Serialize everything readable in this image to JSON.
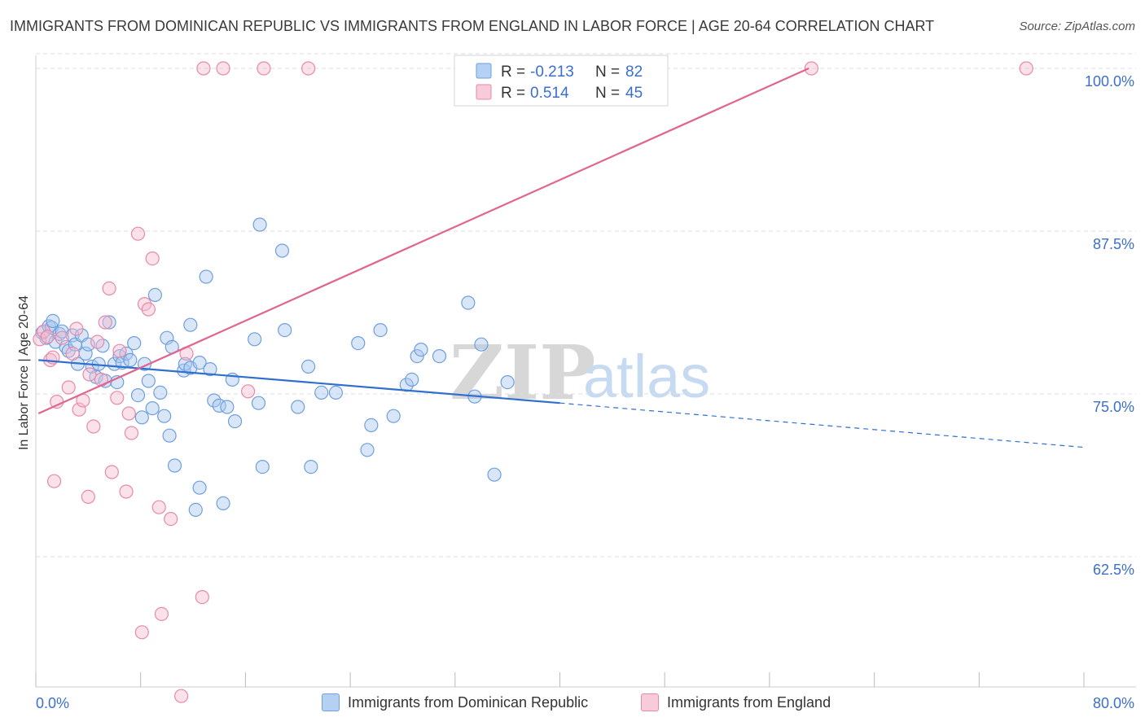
{
  "title": "IMMIGRANTS FROM DOMINICAN REPUBLIC VS IMMIGRANTS FROM ENGLAND IN LABOR FORCE | AGE 20-64 CORRELATION CHART",
  "source": "Source: ZipAtlas.com",
  "watermark": {
    "zip": "ZIP",
    "atlas": "atlas"
  },
  "colors": {
    "blue_fill": "#a8c8ef",
    "blue_stroke": "#6f9fdc",
    "blue_line": "#2f6fcf",
    "pink_fill": "#f5bcd0",
    "pink_stroke": "#e68aaa",
    "pink_line": "#e0658f",
    "axis_text": "#3b6fcc",
    "grid": "#dddddd"
  },
  "legend_top": [
    {
      "r_label": "R =",
      "r_value": "-0.213",
      "n_label": "N =",
      "n_value": "82",
      "series": "blue"
    },
    {
      "r_label": "R =",
      "r_value": "0.514",
      "n_label": "N =",
      "n_value": "45",
      "series": "pink"
    }
  ],
  "legend_bottom": [
    {
      "label": "Immigrants from Dominican Republic",
      "series": "blue"
    },
    {
      "label": "Immigrants from England",
      "series": "pink"
    }
  ],
  "chart_data": {
    "type": "scatter",
    "xlabel": "",
    "ylabel": "In Labor Force | Age 20-64",
    "xlim": [
      0,
      80
    ],
    "ylim": [
      52.5,
      101.5
    ],
    "x_tick_labels": [
      "0.0%",
      "80.0%"
    ],
    "y_ticks": [
      62.5,
      75.0,
      87.5,
      100.0
    ],
    "y_tick_labels": [
      "62.5%",
      "75.0%",
      "87.5%",
      "100.0%"
    ],
    "grid": "horizontal dashed",
    "legend": "top-center",
    "series": [
      {
        "name": "Immigrants from Dominican Republic",
        "color": "blue",
        "trend": {
          "x0": 0.2,
          "y0": 77.6,
          "x1": 40,
          "y1": 74.3,
          "dashed_to_x": 80,
          "dashed_to_y": 70.9
        },
        "points": [
          [
            0.5,
            79.7
          ],
          [
            0.8,
            79.3
          ],
          [
            1.0,
            80.2
          ],
          [
            1.2,
            80.1
          ],
          [
            1.3,
            80.6
          ],
          [
            1.5,
            79.0
          ],
          [
            1.8,
            79.6
          ],
          [
            2.0,
            79.8
          ],
          [
            2.3,
            78.6
          ],
          [
            2.5,
            78.3
          ],
          [
            2.8,
            79.5
          ],
          [
            3.0,
            78.8
          ],
          [
            3.2,
            77.3
          ],
          [
            3.5,
            79.5
          ],
          [
            3.8,
            78.1
          ],
          [
            4.0,
            78.8
          ],
          [
            4.3,
            77.1
          ],
          [
            4.6,
            76.3
          ],
          [
            4.8,
            77.3
          ],
          [
            5.1,
            78.7
          ],
          [
            5.3,
            76.0
          ],
          [
            5.6,
            80.5
          ],
          [
            6.0,
            77.3
          ],
          [
            6.2,
            75.9
          ],
          [
            6.4,
            77.9
          ],
          [
            6.6,
            77.4
          ],
          [
            6.9,
            78.1
          ],
          [
            7.2,
            77.6
          ],
          [
            7.5,
            78.9
          ],
          [
            7.8,
            74.9
          ],
          [
            8.1,
            73.2
          ],
          [
            8.3,
            77.3
          ],
          [
            8.6,
            76.0
          ],
          [
            8.9,
            73.9
          ],
          [
            9.1,
            82.6
          ],
          [
            9.5,
            75.1
          ],
          [
            9.8,
            73.3
          ],
          [
            10.0,
            79.3
          ],
          [
            10.2,
            71.8
          ],
          [
            10.4,
            78.6
          ],
          [
            10.6,
            69.5
          ],
          [
            11.3,
            76.8
          ],
          [
            11.4,
            77.3
          ],
          [
            11.8,
            77.0
          ],
          [
            11.8,
            80.3
          ],
          [
            12.2,
            66.1
          ],
          [
            12.5,
            77.4
          ],
          [
            12.5,
            67.8
          ],
          [
            13.0,
            84.0
          ],
          [
            13.3,
            76.9
          ],
          [
            13.6,
            74.5
          ],
          [
            14.0,
            74.1
          ],
          [
            14.3,
            66.6
          ],
          [
            14.6,
            74.0
          ],
          [
            15.0,
            76.1
          ],
          [
            15.2,
            72.9
          ],
          [
            16.7,
            79.2
          ],
          [
            17.0,
            74.3
          ],
          [
            17.1,
            88.0
          ],
          [
            17.3,
            69.4
          ],
          [
            18.8,
            86.0
          ],
          [
            19.0,
            79.9
          ],
          [
            20.0,
            74.0
          ],
          [
            20.8,
            77.1
          ],
          [
            21.0,
            69.4
          ],
          [
            21.8,
            75.1
          ],
          [
            22.9,
            75.1
          ],
          [
            24.6,
            78.9
          ],
          [
            25.3,
            70.7
          ],
          [
            25.6,
            72.6
          ],
          [
            26.3,
            79.9
          ],
          [
            27.3,
            73.3
          ],
          [
            28.3,
            75.7
          ],
          [
            28.7,
            76.1
          ],
          [
            29.1,
            77.9
          ],
          [
            29.4,
            78.4
          ],
          [
            30.8,
            77.9
          ],
          [
            33.0,
            82.0
          ],
          [
            33.5,
            74.8
          ],
          [
            34.0,
            78.8
          ],
          [
            35.0,
            68.8
          ],
          [
            36.0,
            75.9
          ]
        ]
      },
      {
        "name": "Immigrants from England",
        "color": "pink",
        "trend": {
          "x0": 0.2,
          "y0": 73.5,
          "x1": 59,
          "y1": 100.0
        },
        "points": [
          [
            0.3,
            79.2
          ],
          [
            0.6,
            79.8
          ],
          [
            0.9,
            79.4
          ],
          [
            1.1,
            77.6
          ],
          [
            1.3,
            77.8
          ],
          [
            1.6,
            74.4
          ],
          [
            2.0,
            79.3
          ],
          [
            2.5,
            75.5
          ],
          [
            2.8,
            78.1
          ],
          [
            3.1,
            80.0
          ],
          [
            3.3,
            73.8
          ],
          [
            3.6,
            74.5
          ],
          [
            4.0,
            67.1
          ],
          [
            4.1,
            76.5
          ],
          [
            4.4,
            72.5
          ],
          [
            4.7,
            79.0
          ],
          [
            5.0,
            76.1
          ],
          [
            5.3,
            80.5
          ],
          [
            5.6,
            83.1
          ],
          [
            5.8,
            69.0
          ],
          [
            6.2,
            74.7
          ],
          [
            6.9,
            67.5
          ],
          [
            7.1,
            73.5
          ],
          [
            7.3,
            72.0
          ],
          [
            7.8,
            87.3
          ],
          [
            8.1,
            56.7
          ],
          [
            8.3,
            81.9
          ],
          [
            8.6,
            81.5
          ],
          [
            8.9,
            85.4
          ],
          [
            9.4,
            66.3
          ],
          [
            9.6,
            58.1
          ],
          [
            10.3,
            65.4
          ],
          [
            11.1,
            51.8
          ],
          [
            11.5,
            78.1
          ],
          [
            12.7,
            59.4
          ],
          [
            12.8,
            100.0
          ],
          [
            14.3,
            100.0
          ],
          [
            16.2,
            75.2
          ],
          [
            17.4,
            100.0
          ],
          [
            20.8,
            100.0
          ],
          [
            33.0,
            100.0
          ],
          [
            59.2,
            100.0
          ],
          [
            75.6,
            100.0
          ],
          [
            1.4,
            68.3
          ],
          [
            6.4,
            78.3
          ]
        ]
      }
    ]
  }
}
